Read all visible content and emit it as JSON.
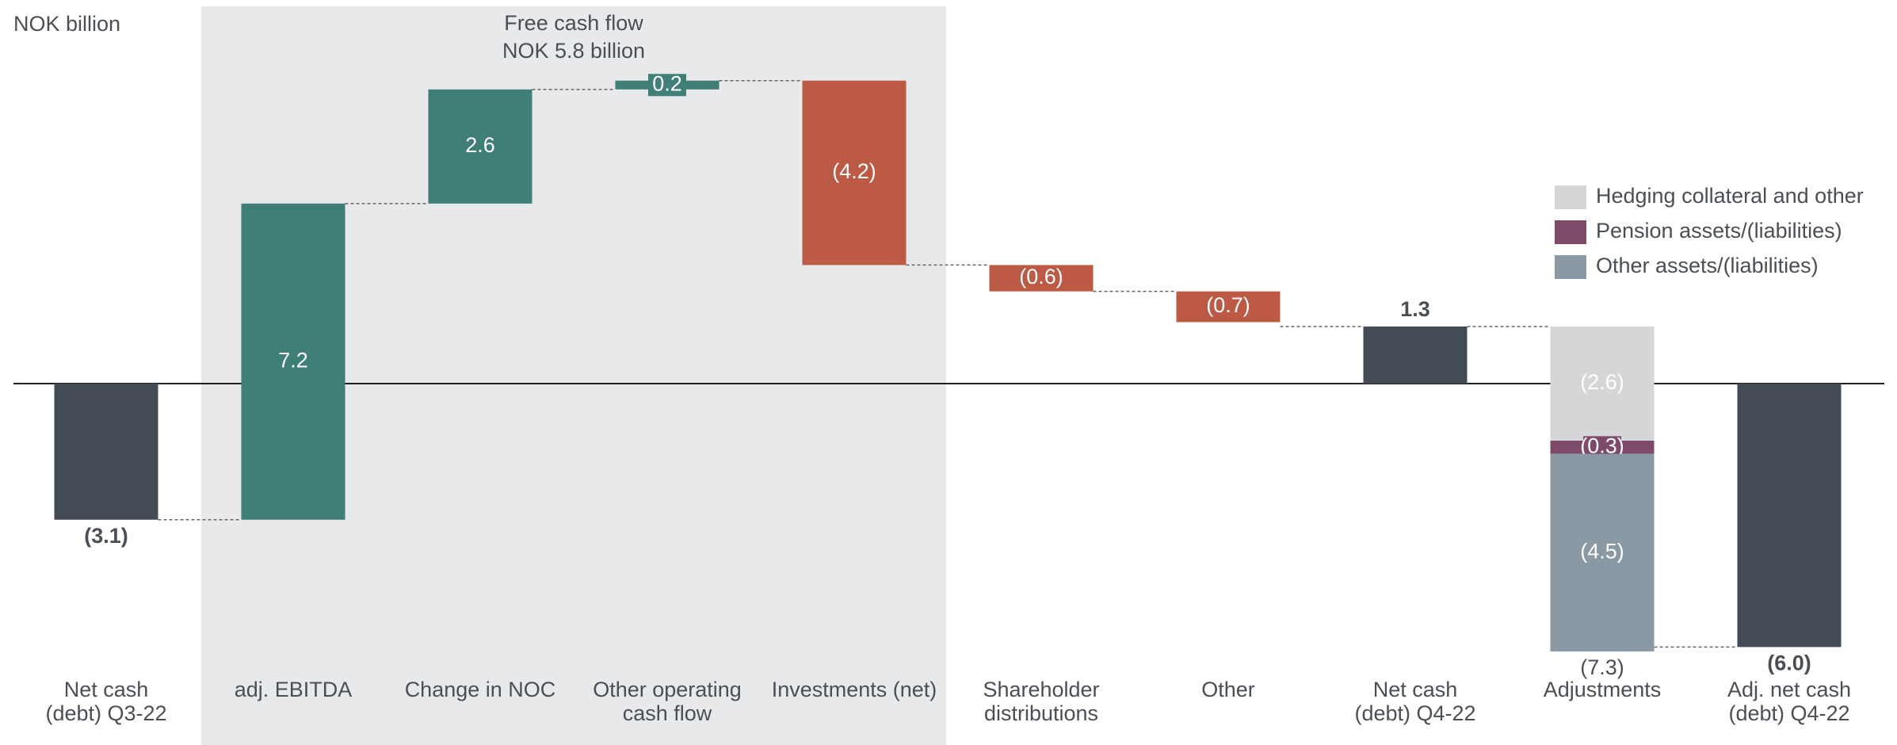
{
  "chart_data": {
    "type": "waterfall",
    "unit_label": "NOK billion",
    "highlight": {
      "title": "Free cash flow",
      "subtitle": "NOK 5.8 billion",
      "from": 1,
      "to": 4,
      "color": "#e8e9eb"
    },
    "categories": [
      "Net cash\n(debt) Q3-22",
      "adj. EBITDA",
      "Change in NOC",
      "Other operating\ncash flow",
      "Investments (net)",
      "Shareholder\ndistributions",
      "Other",
      "Net cash\n(debt) Q4-22",
      "Adjustments",
      "Adj. net cash\n(debt) Q4-22"
    ],
    "kinds": [
      "total",
      "delta",
      "delta",
      "delta",
      "delta",
      "delta",
      "delta",
      "total",
      "breakdown",
      "total"
    ],
    "values": [
      -3.1,
      7.2,
      2.6,
      0.2,
      -4.2,
      -0.6,
      -0.7,
      1.3,
      -7.3,
      -6.0
    ],
    "value_labels": [
      "(3.1)",
      "7.2",
      "2.6",
      "0.2",
      "(4.2)",
      "(0.6)",
      "(0.7)",
      "1.3",
      "(7.3)",
      "(6.0)"
    ],
    "colors": [
      "#434b55",
      "#3f7f78",
      "#3f7f78",
      "#3f7f78",
      "#bc5a45",
      "#bc5a45",
      "#bc5a45",
      "#434b55",
      null,
      "#434b55"
    ],
    "series": [
      {
        "name": "Hedging collateral and other",
        "color": "#d5d6d8",
        "values": [
          null,
          null,
          null,
          null,
          null,
          null,
          null,
          null,
          -2.6,
          null
        ],
        "value_labels": [
          null,
          null,
          null,
          null,
          null,
          null,
          null,
          null,
          "(2.6)",
          null
        ]
      },
      {
        "name": "Pension assets/(liabilities)",
        "color": "#7d4a6a",
        "values": [
          null,
          null,
          null,
          null,
          null,
          null,
          null,
          null,
          -0.3,
          null
        ],
        "value_labels": [
          null,
          null,
          null,
          null,
          null,
          null,
          null,
          null,
          "(0.3)",
          null
        ]
      },
      {
        "name": "Other assets/(liabilities)",
        "color": "#8a99a3",
        "values": [
          null,
          null,
          null,
          null,
          null,
          null,
          null,
          null,
          -4.5,
          null
        ],
        "value_labels": [
          null,
          null,
          null,
          null,
          null,
          null,
          null,
          null,
          "(4.5)",
          null
        ]
      }
    ]
  }
}
